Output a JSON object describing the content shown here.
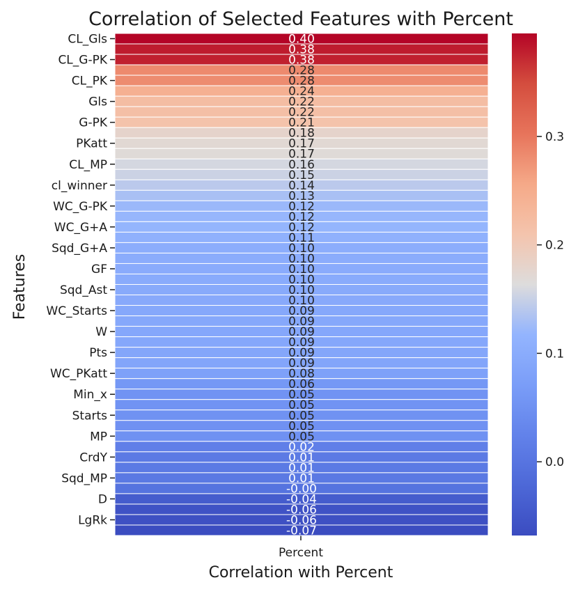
{
  "chart_data": {
    "type": "heatmap",
    "title": "Correlation of Selected Features with Percent",
    "xlabel": "Correlation with Percent",
    "ylabel": "Features",
    "columns": [
      "Percent"
    ],
    "y_tick_labels": [
      "CL_Gls",
      "CL_G-PK",
      "CL_PK",
      "Gls",
      "G-PK",
      "PKatt",
      "CL_MP",
      "cl_winner",
      "WC_G-PK",
      "WC_G+A",
      "Sqd_G+A",
      "GF",
      "Sqd_Ast",
      "WC_Starts",
      "W",
      "Pts",
      "WC_PKatt",
      "Min_x",
      "Starts",
      "MP",
      "CrdY",
      "Sqd_MP",
      "D",
      "LgRk"
    ],
    "cell_labels": [
      "0.40",
      "0.38",
      "0.38",
      "0.28",
      "0.28",
      "0.24",
      "0.22",
      "0.22",
      "0.21",
      "0.18",
      "0.17",
      "0.17",
      "0.16",
      "0.15",
      "0.14",
      "0.13",
      "0.12",
      "0.12",
      "0.12",
      "0.11",
      "0.10",
      "0.10",
      "0.10",
      "0.10",
      "0.10",
      "0.10",
      "0.09",
      "0.09",
      "0.09",
      "0.09",
      "0.09",
      "0.09",
      "0.08",
      "0.06",
      "0.05",
      "0.05",
      "0.05",
      "0.05",
      "0.05",
      "0.02",
      "0.01",
      "0.01",
      "0.01",
      "-0.00",
      "-0.04",
      "-0.06",
      "-0.06",
      "-0.07"
    ],
    "values": [
      0.395,
      0.38,
      0.377,
      0.283,
      0.281,
      0.244,
      0.222,
      0.219,
      0.212,
      0.18,
      0.172,
      0.168,
      0.158,
      0.152,
      0.142,
      0.131,
      0.122,
      0.12,
      0.118,
      0.112,
      0.104,
      0.102,
      0.1,
      0.099,
      0.097,
      0.096,
      0.094,
      0.093,
      0.092,
      0.091,
      0.089,
      0.088,
      0.078,
      0.062,
      0.054,
      0.053,
      0.052,
      0.051,
      0.05,
      0.02,
      0.011,
      0.01,
      0.008,
      -0.003,
      -0.041,
      -0.058,
      -0.061,
      -0.068
    ],
    "colorbar": {
      "vmin": -0.068,
      "vmax": 0.395,
      "ticks": [
        0.0,
        0.1,
        0.2,
        0.3
      ],
      "tick_labels": [
        "0.0",
        "0.1",
        "0.2",
        "0.3"
      ],
      "colormap": "coolwarm"
    },
    "grid": false
  },
  "colors": {
    "cmap_low": "#3b4cc0",
    "cmap_mid": "#dddcdc",
    "cmap_high": "#b40426",
    "text": "#1a1a1a",
    "cell_border": "#ffffff"
  }
}
